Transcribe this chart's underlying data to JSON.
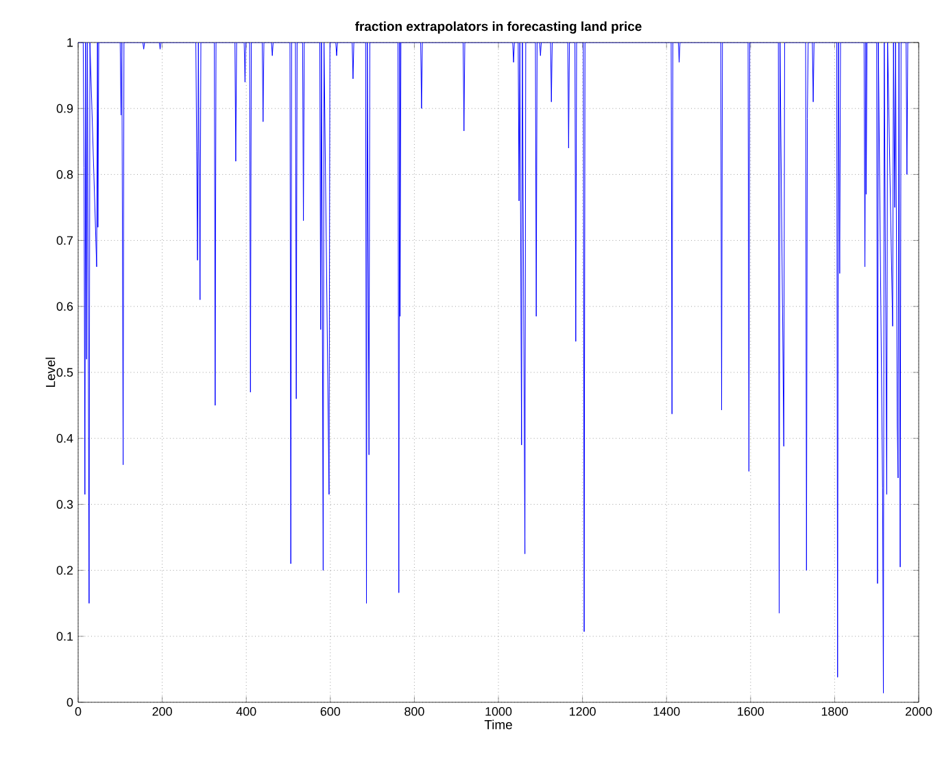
{
  "chart_data": {
    "type": "line",
    "title": "fraction extrapolators in forecasting land price",
    "xlabel": "Time",
    "ylabel": "Level",
    "series": [
      {
        "color": "#0000ff",
        "x": [
          0,
          12,
          14,
          16,
          18,
          20,
          22,
          26,
          28,
          44,
          46,
          47,
          49,
          100,
          102,
          104,
          107,
          109,
          154,
          156,
          158,
          193,
          195,
          197,
          280,
          282,
          284,
          286,
          290,
          292,
          324,
          326,
          328,
          373,
          375,
          377,
          395,
          397,
          399,
          408,
          410,
          412,
          438,
          440,
          442,
          460,
          462,
          464,
          504,
          506,
          508,
          517,
          519,
          521,
          534,
          536,
          538,
          575,
          577,
          579,
          583,
          585,
          597,
          599,
          613,
          615,
          617,
          652,
          654,
          656,
          684,
          686,
          688,
          692,
          694,
          761,
          763,
          765,
          766,
          768,
          815,
          817,
          819,
          916,
          918,
          920,
          1034,
          1036,
          1038,
          1047,
          1049,
          1051,
          1055,
          1057,
          1063,
          1065,
          1088,
          1090,
          1092,
          1098,
          1100,
          1102,
          1124,
          1126,
          1128,
          1165,
          1167,
          1169,
          1182,
          1184,
          1186,
          1202,
          1204,
          1206,
          1411,
          1413,
          1415,
          1428,
          1430,
          1432,
          1529,
          1531,
          1533,
          1594,
          1596,
          1598,
          1666,
          1668,
          1670,
          1679,
          1681,
          1731,
          1733,
          1735,
          1737,
          1747,
          1749,
          1751,
          1805,
          1807,
          1809,
          1812,
          1814,
          1870,
          1872,
          1874,
          1875,
          1877,
          1900,
          1902,
          1904,
          1914,
          1916,
          1918,
          1924,
          1926,
          1938,
          1940,
          1943,
          1945,
          1949,
          1951,
          1953,
          1956,
          1958,
          1970,
          1972,
          1974,
          1980
        ],
        "values": [
          1,
          1,
          0.81,
          0.315,
          1,
          0.52,
          1,
          0.15,
          1,
          0.66,
          1,
          0.72,
          1,
          1,
          0.89,
          1,
          0.36,
          1,
          1,
          0.99,
          1,
          1,
          0.99,
          1,
          1,
          0.835,
          0.67,
          1,
          0.61,
          1,
          1,
          0.45,
          1,
          1,
          0.82,
          1,
          1,
          0.94,
          1,
          1,
          0.47,
          1,
          1,
          0.88,
          1,
          1,
          0.98,
          1,
          1,
          0.21,
          1,
          1,
          0.46,
          1,
          1,
          0.73,
          1,
          1,
          0.565,
          1,
          0.2,
          1,
          0.315,
          1,
          1,
          0.98,
          1,
          1,
          0.945,
          1,
          1,
          0.15,
          1,
          0.375,
          1,
          1,
          0.166,
          1,
          0.585,
          1,
          1,
          0.9,
          1,
          1,
          0.866,
          1,
          1,
          0.97,
          1,
          1,
          0.76,
          1,
          0.39,
          1,
          0.225,
          1,
          1,
          0.585,
          1,
          1,
          0.98,
          1,
          1,
          0.91,
          1,
          1,
          0.84,
          1,
          1,
          0.547,
          1,
          1,
          0.107,
          1,
          1,
          0.437,
          1,
          1,
          0.97,
          1,
          1,
          0.443,
          1,
          1,
          0.35,
          1,
          1,
          0.135,
          1,
          0.388,
          1,
          1,
          0.2,
          0.885,
          1,
          1,
          0.91,
          1,
          1,
          0.038,
          1,
          0.65,
          1,
          1,
          0.66,
          1,
          0.77,
          1,
          1,
          0.18,
          1,
          0.325,
          0.014,
          1,
          0.315,
          1,
          0.57,
          1,
          0.75,
          1,
          0.42,
          0.34,
          1,
          0.205,
          1,
          1,
          0.8,
          1,
          1
        ]
      }
    ],
    "xlim": [
      0,
      2000
    ],
    "xticks": [
      0,
      200,
      400,
      600,
      800,
      1000,
      1200,
      1400,
      1600,
      1800,
      2000
    ],
    "ylim": [
      0,
      1
    ],
    "yticks": [
      0,
      0.1,
      0.2,
      0.3,
      0.4,
      0.5,
      0.6,
      0.7,
      0.8,
      0.9,
      1
    ],
    "grid": true
  }
}
